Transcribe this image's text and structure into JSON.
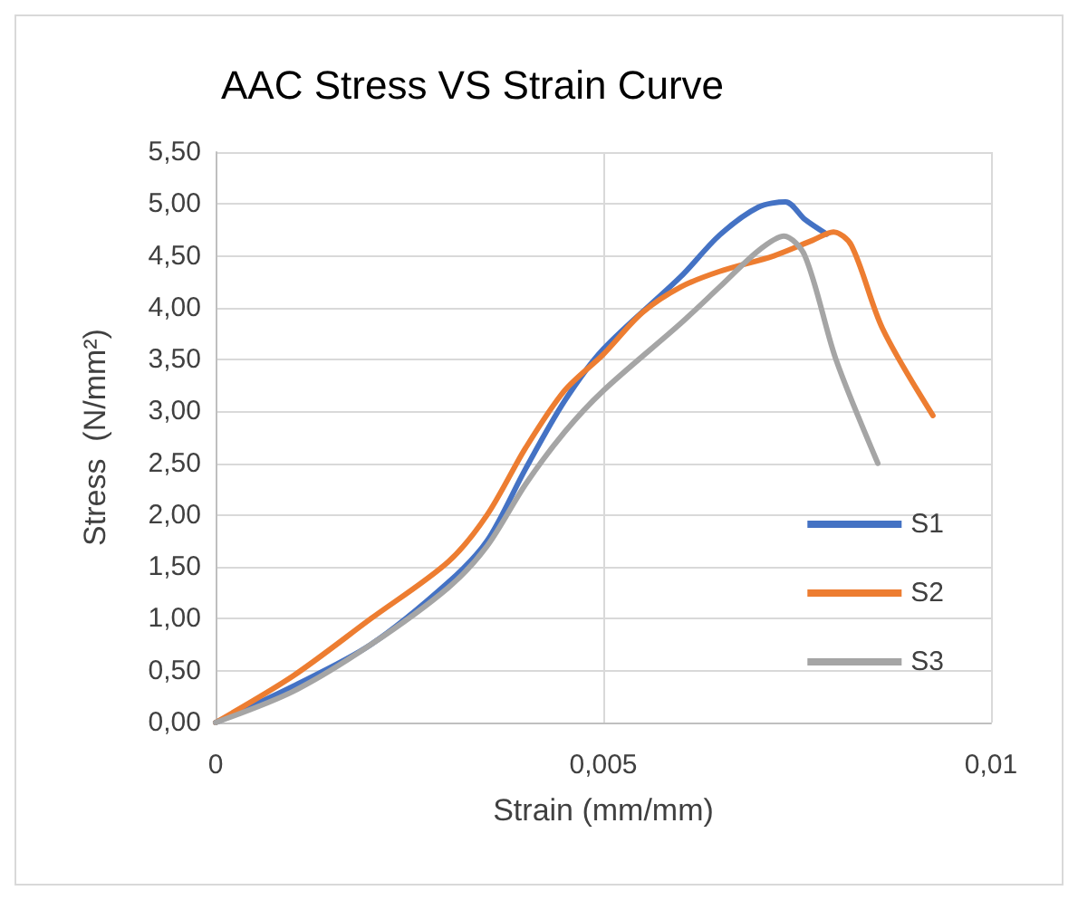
{
  "chart_data": {
    "type": "line",
    "title": "AAC Stress VS Strain Curve",
    "xlabel": "Strain (mm/mm)",
    "ylabel": "Stress  (N/mm²)",
    "xlim": [
      0,
      0.01
    ],
    "xticks": [
      0,
      {
        "value": 0.005,
        "label": "0,005"
      },
      {
        "value": 0.01,
        "label": "0,01"
      }
    ],
    "ylim": [
      0,
      5.5
    ],
    "yticks": [
      {
        "value": 0,
        "label": "0,00"
      },
      {
        "value": 0.5,
        "label": "0,50"
      },
      {
        "value": 1,
        "label": "1,00"
      },
      {
        "value": 1.5,
        "label": "1,50"
      },
      {
        "value": 2,
        "label": "2,00"
      },
      {
        "value": 2.5,
        "label": "2,50"
      },
      {
        "value": 3,
        "label": "3,00"
      },
      {
        "value": 3.5,
        "label": "3,50"
      },
      {
        "value": 4,
        "label": "4,00"
      },
      {
        "value": 4.5,
        "label": "4,50"
      },
      {
        "value": 5,
        "label": "5,00"
      },
      {
        "value": 5.5,
        "label": "5,50"
      }
    ],
    "grid": true,
    "legend": "bottom right",
    "marker": "none",
    "line_style": "solid",
    "series": [
      {
        "name": "S1",
        "color": "#4472c4",
        "x": [
          0,
          0.001,
          0.002,
          0.003,
          0.0035,
          0.004,
          0.0045,
          0.005,
          0.006,
          0.0065,
          0.007,
          0.00735,
          0.0076,
          0.00788
        ],
        "values": [
          0,
          0.35,
          0.75,
          1.35,
          1.75,
          2.45,
          3.1,
          3.6,
          4.3,
          4.7,
          4.97,
          5.02,
          4.85,
          4.71
        ]
      },
      {
        "name": "S2",
        "color": "#ed7d31",
        "x": [
          0,
          0.001,
          0.002,
          0.003,
          0.0035,
          0.004,
          0.0045,
          0.005,
          0.0055,
          0.006,
          0.0065,
          0.0072,
          0.0077,
          0.00797,
          0.0082,
          0.0086,
          0.00925
        ],
        "values": [
          0,
          0.45,
          1.0,
          1.55,
          2.0,
          2.65,
          3.2,
          3.55,
          3.95,
          4.2,
          4.35,
          4.5,
          4.65,
          4.73,
          4.6,
          3.8,
          2.96
        ]
      },
      {
        "name": "S3",
        "color": "#a5a5a5",
        "x": [
          0,
          0.001,
          0.002,
          0.003,
          0.0035,
          0.004,
          0.0045,
          0.005,
          0.006,
          0.0065,
          0.007,
          0.00733,
          0.0076,
          0.008,
          0.00854
        ],
        "values": [
          0,
          0.3,
          0.75,
          1.3,
          1.7,
          2.3,
          2.8,
          3.2,
          3.85,
          4.2,
          4.55,
          4.69,
          4.5,
          3.5,
          2.5
        ]
      }
    ]
  }
}
